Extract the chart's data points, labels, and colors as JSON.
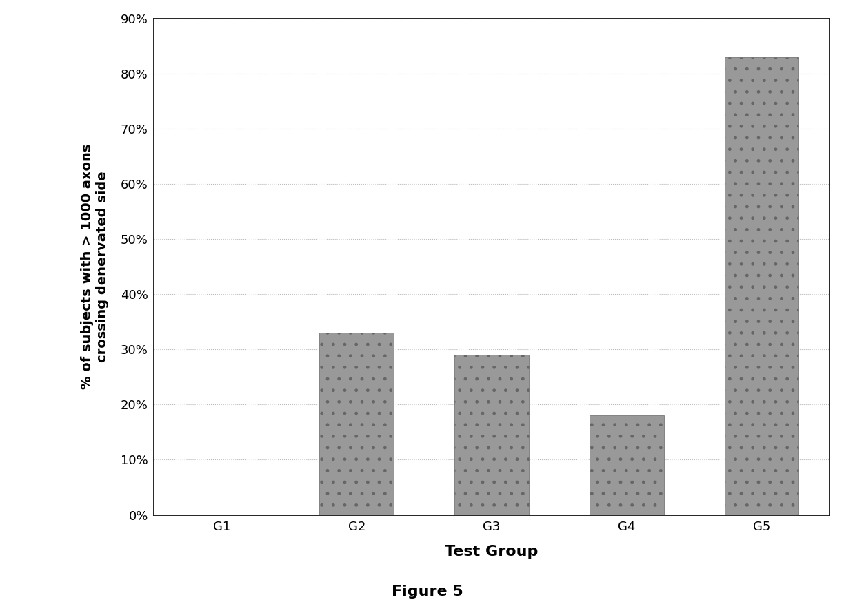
{
  "categories": [
    "G1",
    "G2",
    "G3",
    "G4",
    "G5"
  ],
  "values": [
    0.0,
    0.33,
    0.29,
    0.18,
    0.83
  ],
  "bar_color": "#888888",
  "ylabel_line1": "% of subjects with > 1000 axons",
  "ylabel_line2": "crossing denervated side",
  "xlabel": "Test Group",
  "figure_caption": "Figure 5",
  "ylim": [
    0,
    0.9
  ],
  "yticks": [
    0.0,
    0.1,
    0.2,
    0.3,
    0.4,
    0.5,
    0.6,
    0.7,
    0.8,
    0.9
  ],
  "ytick_labels": [
    "0%",
    "10%",
    "20%",
    "30%",
    "40%",
    "50%",
    "60%",
    "70%",
    "80%",
    "90%"
  ],
  "background_color": "#ffffff",
  "grid_color": "#bbbbbb",
  "ylabel_fontsize": 14,
  "xlabel_fontsize": 16,
  "tick_fontsize": 13,
  "caption_fontsize": 16,
  "bar_width": 0.55
}
